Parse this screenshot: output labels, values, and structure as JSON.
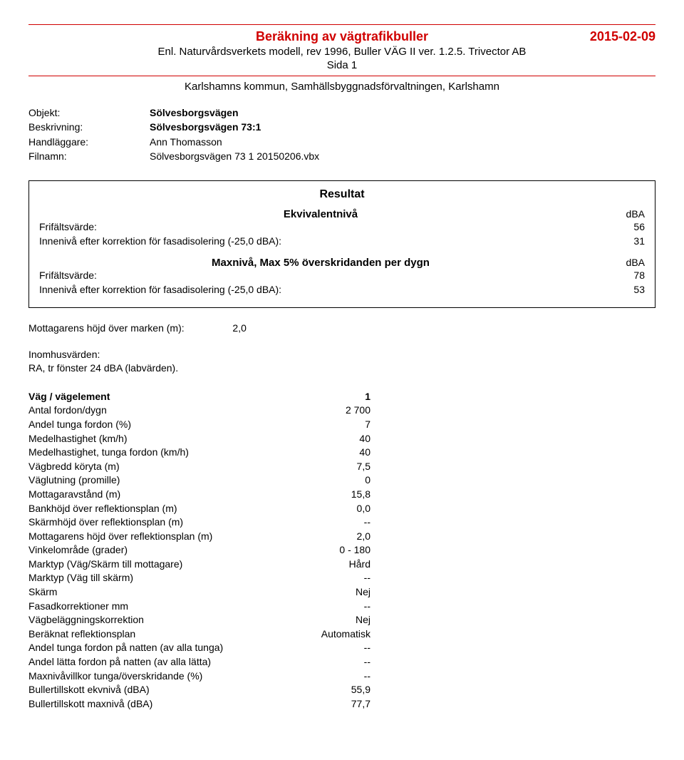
{
  "header": {
    "title": "Beräkning av vägtrafikbuller",
    "date": "2015-02-09",
    "subtitle": "Enl. Naturvårdsverkets modell, rev 1996, Buller VÄG II ver. 1.2.5. Trivector AB",
    "sida": "Sida 1",
    "kommun": "Karlshamns kommun, Samhällsbyggnadsförvaltningen, Karlshamn"
  },
  "meta": {
    "objekt_label": "Objekt:",
    "objekt_value": "Sölvesborgsvägen",
    "beskrivning_label": "Beskrivning:",
    "beskrivning_value": "Sölvesborgsvägen 73:1",
    "handlaggare_label": "Handläggare:",
    "handlaggare_value": "Ann Thomasson",
    "filnamn_label": "Filnamn:",
    "filnamn_value": "Sölvesborgsvägen 73 1 20150206.vbx"
  },
  "result": {
    "title": "Resultat",
    "ekv_label": "Ekvivalentnivå",
    "dba": "dBA",
    "frifalt_label": "Frifältsvärde:",
    "ekv_frifalt": "56",
    "inneniva_label": "Innenivå efter korrektion för fasadisolering (-25,0 dBA):",
    "ekv_inneniva": "31",
    "max_label": "Maxnivå, Max 5% överskridanden per dygn",
    "max_frifalt": "78",
    "max_inneniva": "53"
  },
  "mottagare": {
    "label": "Mottagarens höjd över marken (m):",
    "value": "2,0"
  },
  "inomhus": {
    "l1": "Inomhusvärden:",
    "l2": "RA, tr fönster 24 dBA (labvärden)."
  },
  "rows": [
    {
      "k": "Väg / vägelement",
      "v": "1",
      "bold": true
    },
    {
      "k": "Antal fordon/dygn",
      "v": "2 700"
    },
    {
      "k": "Andel tunga fordon (%)",
      "v": "7"
    },
    {
      "k": "Medelhastighet (km/h)",
      "v": "40"
    },
    {
      "k": "Medelhastighet, tunga fordon (km/h)",
      "v": "40"
    },
    {
      "k": "Vägbredd köryta (m)",
      "v": "7,5"
    },
    {
      "k": "Väglutning (promille)",
      "v": "0"
    },
    {
      "k": "Mottagaravstånd (m)",
      "v": "15,8"
    },
    {
      "k": "Bankhöjd över reflektionsplan (m)",
      "v": "0,0"
    },
    {
      "k": "Skärmhöjd över reflektionsplan (m)",
      "v": "--"
    },
    {
      "k": "Mottagarens höjd över reflektionsplan (m)",
      "v": "2,0"
    },
    {
      "k": "Vinkelområde (grader)",
      "v": "0 - 180"
    },
    {
      "k": "Marktyp (Väg/Skärm till mottagare)",
      "v": "Hård"
    },
    {
      "k": "Marktyp (Väg till skärm)",
      "v": "--"
    },
    {
      "k": "Skärm",
      "v": "Nej"
    },
    {
      "k": "Fasadkorrektioner mm",
      "v": "--"
    },
    {
      "k": "Vägbeläggningskorrektion",
      "v": "Nej"
    },
    {
      "k": "Beräknat reflektionsplan",
      "v": "Automatisk"
    },
    {
      "k": "Andel tunga fordon på natten (av alla tunga)",
      "v": "--"
    },
    {
      "k": "Andel lätta fordon på natten (av alla lätta)",
      "v": "--"
    },
    {
      "k": "Maxnivåvillkor tunga/överskridande (%)",
      "v": "--"
    },
    {
      "k": "Bullertillskott ekvnivå (dBA)",
      "v": "55,9"
    },
    {
      "k": "Bullertillskott maxnivå (dBA)",
      "v": "77,7"
    }
  ]
}
